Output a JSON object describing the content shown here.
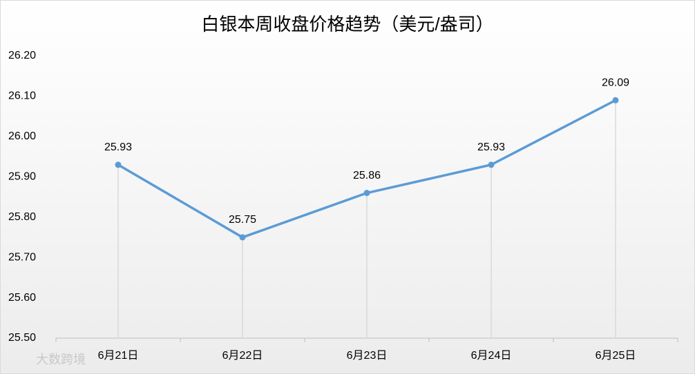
{
  "chart_data": {
    "type": "line",
    "title": "白银本周收盘价格趋势（美元/盎司）",
    "categories": [
      "6月21日",
      "6月22日",
      "6月23日",
      "6月24日",
      "6月25日"
    ],
    "values": [
      25.93,
      25.75,
      25.86,
      25.93,
      26.09
    ],
    "color": "#5b9bd5",
    "ylim": [
      25.5,
      26.2
    ],
    "yticks": [
      {
        "value": 25.5,
        "label": "25.50"
      },
      {
        "value": 25.6,
        "label": "25.60"
      },
      {
        "value": 25.7,
        "label": "25.70"
      },
      {
        "value": 25.8,
        "label": "25.80"
      },
      {
        "value": 25.9,
        "label": "25.90"
      },
      {
        "value": 26.0,
        "label": "26.00"
      },
      {
        "value": 26.1,
        "label": "26.10"
      },
      {
        "value": 26.2,
        "label": "26.20"
      }
    ],
    "drop_lines": true,
    "watermark": "大数跨境"
  }
}
